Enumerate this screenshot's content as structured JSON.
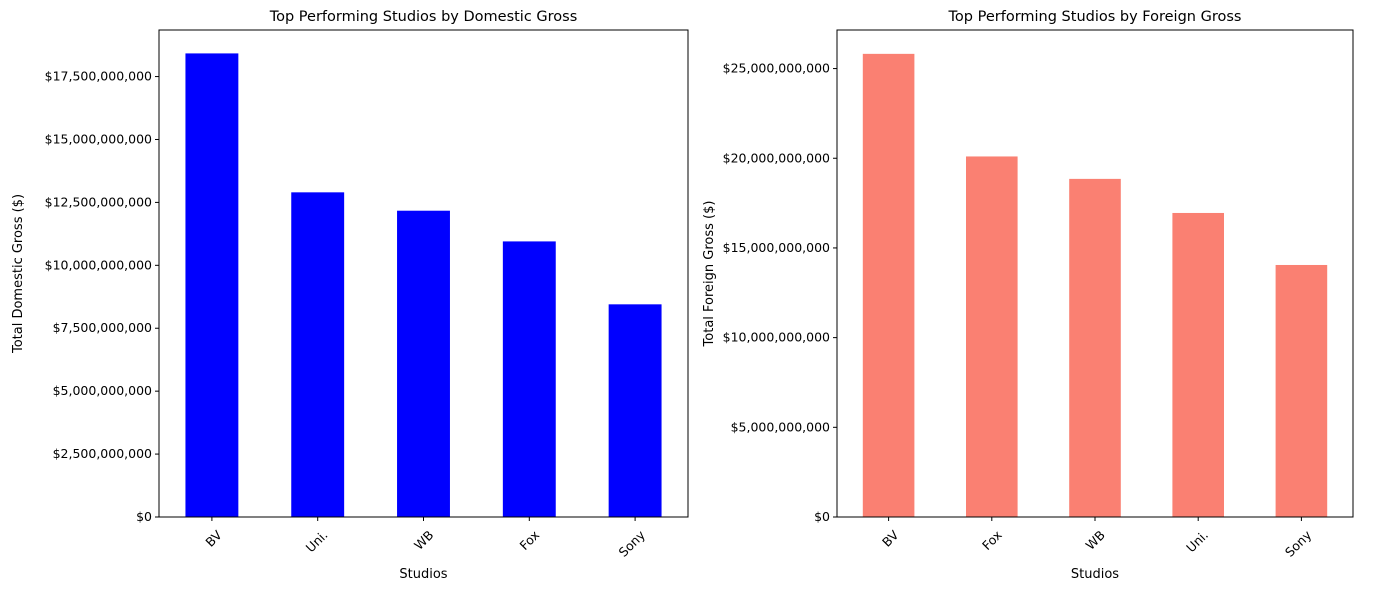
{
  "chart_data": [
    {
      "type": "bar",
      "title": "Top Performing Studios by Domestic Gross",
      "xlabel": "Studios",
      "ylabel": "Total Domestic Gross ($)",
      "categories": [
        "BV",
        "Uni.",
        "WB",
        "Fox",
        "Sony"
      ],
      "values": [
        18420000000,
        12900000000,
        12170000000,
        10950000000,
        8450000000
      ],
      "ylim": [
        0,
        19350000000
      ],
      "yticks": [
        0,
        2500000000,
        5000000000,
        7500000000,
        10000000000,
        12500000000,
        15000000000,
        17500000000
      ],
      "ytick_labels": [
        "$0",
        "$2,500,000,000",
        "$5,000,000,000",
        "$7,500,000,000",
        "$10,000,000,000",
        "$12,500,000,000",
        "$15,000,000,000",
        "$17,500,000,000"
      ],
      "bar_color": "#0000ff",
      "grid": false
    },
    {
      "type": "bar",
      "title": "Top Performing Studios by  Foreign Gross",
      "xlabel": "Studios",
      "ylabel": "Total Foreign Gross ($)",
      "categories": [
        "BV",
        "Fox",
        "WB",
        "Uni.",
        "Sony"
      ],
      "values": [
        25820000000,
        20100000000,
        18850000000,
        16950000000,
        14050000000
      ],
      "ylim": [
        0,
        27150000000
      ],
      "yticks": [
        0,
        5000000000,
        10000000000,
        15000000000,
        20000000000,
        25000000000
      ],
      "ytick_labels": [
        "$0",
        "$5,000,000,000",
        "$10,000,000,000",
        "$15,000,000,000",
        "$20,000,000,000",
        "$25,000,000,000"
      ],
      "bar_color": "#fa8072",
      "grid": false
    }
  ]
}
